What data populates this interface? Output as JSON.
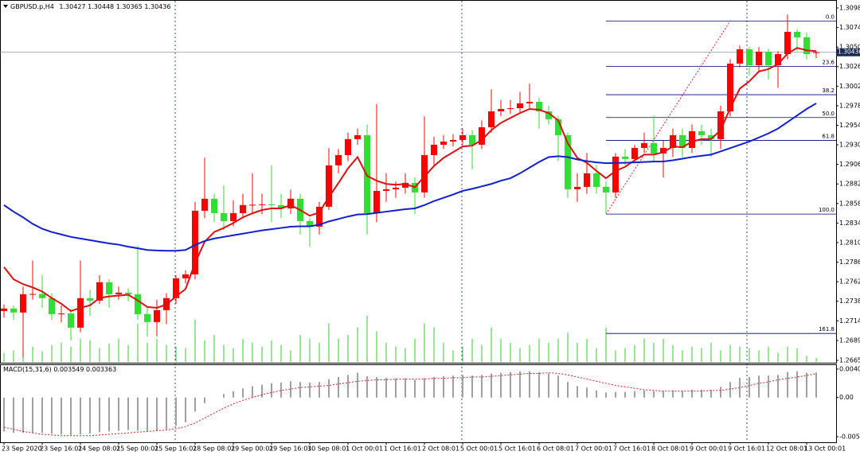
{
  "chart_data": [
    {
      "type": "candlestick",
      "title": "GBPUSD.p,H4",
      "categories": [
        "23 Sep 2020",
        null,
        null,
        null,
        "23 Sep 16:01",
        null,
        null,
        null,
        "24 Sep 08:01",
        null,
        null,
        null,
        "25 Sep 00:01",
        null,
        null,
        null,
        "25 Sep 16:01",
        null,
        null,
        null,
        "28 Sep 08:01",
        null,
        null,
        null,
        "29 Sep 00:01",
        null,
        null,
        null,
        "29 Sep 16:01",
        null,
        null,
        null,
        "30 Sep 08:01",
        null,
        null,
        null,
        "1 Oct 00:01",
        null,
        null,
        null,
        "1 Oct 16:01",
        null,
        null,
        null,
        "2 Oct 08:01",
        null,
        null,
        null,
        "5 Oct 00:01",
        null,
        null,
        null,
        "5 Oct 16:01",
        null,
        null,
        null,
        "6 Oct 08:01",
        null,
        null,
        null,
        "7 Oct 00:01",
        null,
        null,
        null,
        "7 Oct 16:01",
        null,
        null,
        null,
        "8 Oct 08:01",
        null,
        null,
        null,
        "9 Oct 00:01",
        null,
        null,
        null,
        "9 Oct 16:01",
        null,
        null,
        null,
        "12 Oct 08:01",
        null,
        null,
        null,
        "13 Oct 00:01",
        null
      ],
      "open": [
        1.2726,
        1.27291,
        1.27242,
        1.27466,
        1.2747,
        1.27418,
        1.27222,
        1.2723,
        1.27056,
        1.27418,
        1.27388,
        1.27613,
        1.27466,
        1.27486,
        1.27466,
        1.27222,
        1.27125,
        1.27271,
        1.27418,
        1.27662,
        1.2771,
        1.28491,
        1.28638,
        1.28462,
        1.28364,
        1.28462,
        1.2856,
        1.28565,
        1.2857,
        1.2856,
        1.2852,
        1.28638,
        1.28364,
        1.28296,
        1.2854,
        1.29048,
        1.29174,
        1.2937,
        1.29418,
        1.28462,
        1.28735,
        1.28755,
        1.28774,
        1.28833,
        1.28716,
        1.29174,
        1.29301,
        1.2934,
        1.2936,
        1.29418,
        1.29301,
        1.29516,
        1.29711,
        1.2974,
        1.2975,
        1.29809,
        1.29828,
        1.29711,
        1.29614,
        1.29418,
        1.28755,
        1.28784,
        1.2895,
        1.28784,
        1.28716,
        1.29155,
        1.29126,
        1.29262,
        1.29321,
        1.29194,
        1.29262,
        1.29418,
        1.29262,
        1.29467,
        1.29418,
        1.2937,
        1.29711,
        1.30297,
        1.30472,
        1.30277,
        1.30443,
        1.30277,
        1.30414,
        1.30687,
        1.30619,
        1.30427
      ],
      "high": [
        1.2734,
        1.2733,
        1.2756,
        1.2788,
        1.277,
        1.2748,
        1.2733,
        1.2729,
        1.2788,
        1.2752,
        1.277,
        1.2765,
        1.2756,
        1.2754,
        1.2806,
        1.273,
        1.274,
        1.2748,
        1.277,
        1.2776,
        1.286,
        1.2914,
        1.287,
        1.288,
        1.2862,
        1.287,
        1.2895,
        1.287,
        1.2905,
        1.287,
        1.2875,
        1.287,
        1.284,
        1.286,
        1.2926,
        1.2925,
        1.2945,
        1.295,
        1.2955,
        1.298,
        1.2895,
        1.2885,
        1.2895,
        1.289,
        1.2965,
        1.294,
        1.2942,
        1.2943,
        1.295,
        1.2948,
        1.296,
        1.2998,
        1.2985,
        1.2985,
        1.2995,
        1.3005,
        1.2988,
        1.2978,
        1.2965,
        1.2945,
        1.2895,
        1.292,
        1.2905,
        1.2885,
        1.292,
        1.2925,
        1.293,
        1.2945,
        1.2965,
        1.2935,
        1.295,
        1.295,
        1.2955,
        1.2955,
        1.295,
        1.2978,
        1.3035,
        1.3052,
        1.305,
        1.305,
        1.3048,
        1.3045,
        1.309,
        1.3072,
        1.3068,
        1.30448
      ],
      "low": [
        1.2718,
        1.2715,
        1.2669,
        1.274,
        1.273,
        1.2715,
        1.2712,
        1.269,
        1.27,
        1.272,
        1.2735,
        1.273,
        1.274,
        1.2738,
        1.2715,
        1.2695,
        1.2695,
        1.271,
        1.2735,
        1.276,
        1.2765,
        1.284,
        1.2835,
        1.2825,
        1.283,
        1.284,
        1.2845,
        1.2845,
        1.2835,
        1.284,
        1.2845,
        1.282,
        1.2805,
        1.282,
        1.285,
        1.2895,
        1.291,
        1.293,
        1.282,
        1.2835,
        1.286,
        1.2865,
        1.287,
        1.2845,
        1.2865,
        1.2905,
        1.2925,
        1.2928,
        1.293,
        1.29,
        1.2925,
        1.2945,
        1.2965,
        1.2968,
        1.297,
        1.2975,
        1.295,
        1.2955,
        1.291,
        1.2865,
        1.286,
        1.287,
        1.287,
        1.2846,
        1.2865,
        1.2905,
        1.291,
        1.292,
        1.291,
        1.289,
        1.2915,
        1.2915,
        1.292,
        1.293,
        1.2915,
        1.2925,
        1.2965,
        1.3025,
        1.3015,
        1.302,
        1.301,
        1.3,
        1.3035,
        1.3045,
        1.3035,
        1.30365
      ],
      "close": [
        1.27291,
        1.27242,
        1.27466,
        1.2747,
        1.27418,
        1.27222,
        1.2723,
        1.27056,
        1.27418,
        1.27388,
        1.27613,
        1.27466,
        1.27486,
        1.27466,
        1.27222,
        1.27125,
        1.27271,
        1.27418,
        1.27662,
        1.2771,
        1.28491,
        1.28638,
        1.28462,
        1.28364,
        1.28462,
        1.2856,
        1.28565,
        1.2857,
        1.2856,
        1.2852,
        1.28638,
        1.28364,
        1.28296,
        1.2854,
        1.29048,
        1.29174,
        1.2937,
        1.29418,
        1.28462,
        1.28735,
        1.28755,
        1.28774,
        1.28833,
        1.28716,
        1.29174,
        1.29301,
        1.2934,
        1.2936,
        1.29418,
        1.29301,
        1.29516,
        1.29711,
        1.2974,
        1.2975,
        1.29809,
        1.29828,
        1.29711,
        1.29614,
        1.29418,
        1.28755,
        1.28784,
        1.2895,
        1.28784,
        1.28716,
        1.29155,
        1.29126,
        1.29262,
        1.29321,
        1.29194,
        1.29262,
        1.29418,
        1.29262,
        1.29467,
        1.29418,
        1.2937,
        1.29711,
        1.30297,
        1.30472,
        1.30277,
        1.30443,
        1.30277,
        1.30414,
        1.30687,
        1.30619,
        1.30414,
        1.30436
      ],
      "up_color": "#ff0000",
      "down_color": "#33dd33",
      "overlays": [
        {
          "color": "#e01010",
          "values": [
            1.278,
            1.2765,
            1.2759,
            1.2755,
            1.275,
            1.2742,
            1.2735,
            1.2726,
            1.273,
            1.2733,
            1.2742,
            1.2744,
            1.2745,
            1.2746,
            1.2739,
            1.2731,
            1.273,
            1.2734,
            1.2744,
            1.2753,
            1.2785,
            1.2811,
            1.2823,
            1.2828,
            1.2834,
            1.2841,
            1.2846,
            1.285,
            1.2852,
            1.2852,
            1.2856,
            1.285,
            1.2843,
            1.2847,
            1.2866,
            1.2883,
            1.2901,
            1.2915,
            1.2892,
            1.2886,
            1.2882,
            1.2881,
            1.2882,
            1.2878,
            1.2891,
            1.2904,
            1.2914,
            1.2921,
            1.2928,
            1.2929,
            1.2936,
            1.2948,
            1.2957,
            1.2963,
            1.2969,
            1.2974,
            1.2973,
            1.2969,
            1.296,
            1.2932,
            1.2914,
            1.2908,
            1.2898,
            1.2889,
            1.2898,
            1.2903,
            1.2911,
            1.2918,
            1.2918,
            1.2921,
            1.2928,
            1.2927,
            1.2934,
            1.2937,
            1.2937,
            1.2948,
            1.2975,
            1.2999,
            1.3008,
            1.302,
            1.3023,
            1.3029,
            1.3042,
            1.3049,
            1.3046,
            1.3045
          ]
        },
        {
          "color": "#1020d0",
          "values": [
            1.2856,
            1.2848,
            1.2841,
            1.2833,
            1.2827,
            1.2823,
            1.282,
            1.2817,
            1.2815,
            1.2813,
            1.2811,
            1.2809,
            1.28075,
            1.2805,
            1.2803,
            1.2801,
            1.28003,
            1.28,
            1.28,
            1.2801,
            1.2807,
            1.2812,
            1.2815,
            1.2817,
            1.2819,
            1.2821,
            1.2823,
            1.2825,
            1.28265,
            1.2828,
            1.28295,
            1.283,
            1.283,
            1.2832,
            1.2836,
            1.2839,
            1.2842,
            1.28445,
            1.2845,
            1.28465,
            1.2848,
            1.28495,
            1.2851,
            1.2852,
            1.2856,
            1.2861,
            1.2865,
            1.2869,
            1.28735,
            1.2876,
            1.2879,
            1.2882,
            1.2886,
            1.2889,
            1.2895,
            1.2902,
            1.2909,
            1.2915,
            1.2916,
            1.2915,
            1.2912,
            1.291,
            1.29085,
            1.29075,
            1.29077,
            1.2908,
            1.29085,
            1.2909,
            1.29095,
            1.29096,
            1.2911,
            1.2913,
            1.2915,
            1.29165,
            1.2918,
            1.2922,
            1.2926,
            1.293,
            1.2934,
            1.2939,
            1.2944,
            1.295,
            1.2958,
            1.2966,
            1.2974,
            1.29809
          ]
        }
      ],
      "volumes": [
        12,
        15,
        30,
        20,
        14,
        22,
        25,
        20,
        30,
        28,
        18,
        24,
        30,
        22,
        50,
        25,
        30,
        22,
        20,
        18,
        55,
        28,
        35,
        22,
        18,
        30,
        25,
        20,
        28,
        22,
        15,
        35,
        30,
        25,
        50,
        30,
        35,
        45,
        60,
        40,
        25,
        20,
        18,
        30,
        50,
        45,
        25,
        15,
        20,
        30,
        22,
        45,
        30,
        25,
        18,
        22,
        30,
        25,
        30,
        38,
        25,
        30,
        18,
        45,
        15,
        18,
        22,
        30,
        25,
        30,
        22,
        15,
        20,
        18,
        25,
        15,
        22,
        20,
        18,
        15,
        20,
        12,
        20,
        18,
        8,
        5
      ],
      "volume_color": "#33cc33",
      "fibonacci": {
        "start_index": 63,
        "end_index": 76,
        "color": "#000080",
        "levels": [
          {
            "label": "0.0",
            "price": 1.3082
          },
          {
            "label": "23.6",
            "price": 1.30261
          },
          {
            "label": "38.2",
            "price": 1.29915
          },
          {
            "label": "50.0",
            "price": 1.29635
          },
          {
            "label": "61.8",
            "price": 1.29355
          },
          {
            "label": "100.0",
            "price": 1.2845
          },
          {
            "label": "161.8",
            "price": 1.26985
          }
        ]
      },
      "ylim": [
        1.26655,
        1.3098
      ],
      "yticks": [
        {
          "value": 1.3098,
          "label": "1.30980"
        },
        {
          "value": 1.3074,
          "label": "1.30740"
        },
        {
          "value": 1.305,
          "label": "1.30500"
        },
        {
          "value": 1.3026,
          "label": "1.30260"
        },
        {
          "value": 1.3002,
          "label": "1.30020"
        },
        {
          "value": 1.2978,
          "label": "1.29780"
        },
        {
          "value": 1.2954,
          "label": "1.29540"
        },
        {
          "value": 1.293,
          "label": "1.29300"
        },
        {
          "value": 1.2906,
          "label": "1.29060"
        },
        {
          "value": 1.2882,
          "label": "1.28820"
        },
        {
          "value": 1.2858,
          "label": "1.28580"
        },
        {
          "value": 1.2834,
          "label": "1.28340"
        },
        {
          "value": 1.281,
          "label": "1.28100"
        },
        {
          "value": 1.2786,
          "label": "1.27860"
        },
        {
          "value": 1.2762,
          "label": "1.27620"
        },
        {
          "value": 1.2738,
          "label": "1.27380"
        },
        {
          "value": 1.2714,
          "label": "1.27140"
        },
        1.26899,
        1.26655
      ]
    },
    {
      "type": "macd",
      "title": "MACD(15,31,6)",
      "histogram": [
        -0.0048,
        -0.005,
        -0.005,
        -0.005,
        -0.005,
        -0.0051,
        -0.0052,
        -0.0053,
        -0.0052,
        -0.0051,
        -0.0049,
        -0.0048,
        -0.0047,
        -0.0046,
        -0.0047,
        -0.0048,
        -0.0047,
        -0.0045,
        -0.004,
        -0.0035,
        -0.002,
        -0.0008,
        0.0,
        0.0005,
        0.0009,
        0.0013,
        0.0016,
        0.0018,
        0.002,
        0.0021,
        0.0023,
        0.0022,
        0.0021,
        0.0022,
        0.0026,
        0.0029,
        0.0032,
        0.0035,
        0.003,
        0.0029,
        0.0028,
        0.0027,
        0.0027,
        0.0025,
        0.0027,
        0.0029,
        0.003,
        0.0031,
        0.0032,
        0.0031,
        0.0032,
        0.0034,
        0.0035,
        0.0036,
        0.0037,
        0.0037,
        0.0036,
        0.0034,
        0.0031,
        0.0022,
        0.0016,
        0.0014,
        0.001,
        0.0007,
        0.0008,
        0.0008,
        0.0009,
        0.001,
        0.0009,
        0.0009,
        0.001,
        0.0009,
        0.0011,
        0.0011,
        0.0011,
        0.0015,
        0.0022,
        0.0028,
        0.0029,
        0.0031,
        0.0031,
        0.0032,
        0.0036,
        0.0037,
        0.0035,
        0.003549
      ],
      "signal": [
        -0.0042,
        -0.0045,
        -0.0048,
        -0.005,
        -0.0052,
        -0.0053,
        -0.0054,
        -0.0054,
        -0.0054,
        -0.0054,
        -0.0053,
        -0.0052,
        -0.0051,
        -0.005,
        -0.0049,
        -0.0048,
        -0.0047,
        -0.0046,
        -0.0044,
        -0.0041,
        -0.0036,
        -0.0029,
        -0.0022,
        -0.0015,
        -0.0009,
        -0.0004,
        0.0,
        0.0004,
        0.0007,
        0.001,
        0.0012,
        0.0014,
        0.0015,
        0.0016,
        0.0017,
        0.0019,
        0.0021,
        0.0023,
        0.0024,
        0.0025,
        0.0025,
        0.0026,
        0.0026,
        0.0026,
        0.0026,
        0.0027,
        0.0027,
        0.0028,
        0.0028,
        0.0029,
        0.0029,
        0.003,
        0.0031,
        0.0032,
        0.0033,
        0.0034,
        0.0034,
        0.0035,
        0.0034,
        0.0032,
        0.0029,
        0.0026,
        0.0023,
        0.002,
        0.0017,
        0.0015,
        0.0013,
        0.0011,
        0.001,
        0.0009,
        0.0009,
        0.0009,
        0.0009,
        0.0009,
        0.001,
        0.001,
        0.0012,
        0.0014,
        0.0017,
        0.002,
        0.0022,
        0.0025,
        0.0027,
        0.0029,
        0.0031,
        0.003363
      ],
      "histogram_color": "#a0a0a0",
      "signal_color": "#e02020",
      "ylim": [
        -0.00554,
        0.004016
      ],
      "yticks": [
        0.004016,
        {
          "value": 0,
          "label": "0.00"
        },
        -0.00554
      ]
    }
  ]
}
